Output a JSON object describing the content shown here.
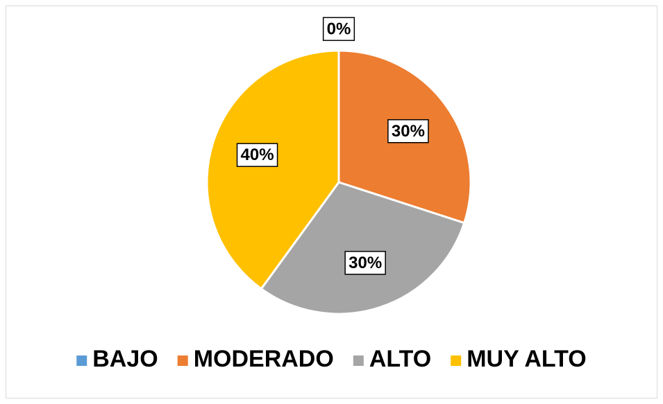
{
  "chart_data": {
    "type": "pie",
    "categories": [
      "BAJO",
      "MODERADO",
      "ALTO",
      "MUY ALTO"
    ],
    "values": [
      0,
      30,
      30,
      40
    ],
    "value_labels": [
      "0%",
      "30%",
      "30%",
      "40%"
    ],
    "colors": [
      "#5b9bd5",
      "#ed7d31",
      "#a5a5a5",
      "#ffc000"
    ],
    "legend": "bottom"
  }
}
